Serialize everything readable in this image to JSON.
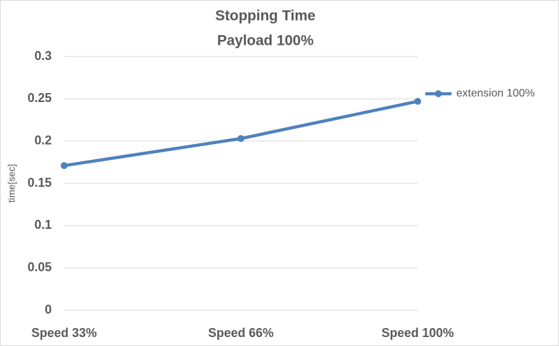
{
  "chart_data": {
    "type": "line",
    "title": "Stopping Time",
    "subtitle": "Payload 100%",
    "y_label": "time[sec]",
    "categories": [
      "Speed 33%",
      "Speed 66%",
      "Speed 100%"
    ],
    "series": [
      {
        "name": "extension 100%",
        "color": "#4f81bd",
        "values": [
          0.171,
          0.203,
          0.247
        ]
      }
    ],
    "ylim": [
      0,
      0.3
    ],
    "yticks": [
      0,
      0.05,
      0.1,
      0.15,
      0.2,
      0.25,
      0.3
    ],
    "grid": true,
    "legend": "right"
  }
}
